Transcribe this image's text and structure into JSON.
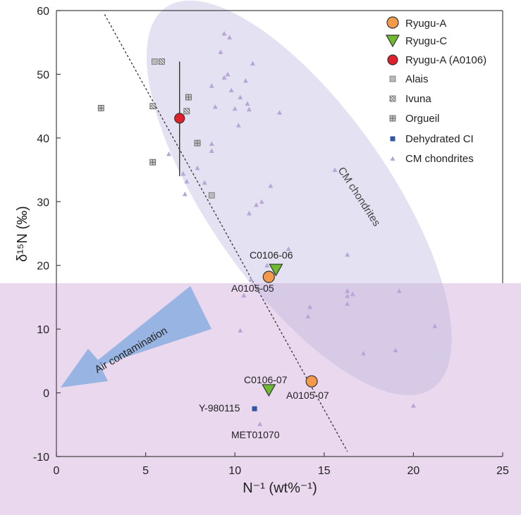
{
  "chart_data": {
    "type": "scatter",
    "xlabel": "N⁻¹ (wt%⁻¹)",
    "ylabel": "δ¹⁵N (‰)",
    "xlim": [
      0,
      25
    ],
    "ylim": [
      -10,
      60
    ],
    "xticks": [
      0,
      5,
      10,
      15,
      20,
      25
    ],
    "yticks": [
      -10,
      0,
      10,
      20,
      30,
      40,
      50,
      60
    ],
    "grid": false,
    "legend_position": "top-right",
    "colors": {
      "ryugu_a": "#f39a4a",
      "ryugu_c": "#6dbb2e",
      "ryugu_a0106": "#e0202a",
      "alais": "#b9b9b9",
      "ivuna": "#c4c4c4",
      "orgueil": "#c4c4c4",
      "dehydrated": "#2f55a8",
      "cm": "#b7a6d6",
      "cm_region": "#b9b3dc",
      "lower_band": "#ead8ee",
      "arrow": "#8fb0e0"
    },
    "series": [
      {
        "name": "Ryugu-A",
        "marker": "circle",
        "points": [
          [
            11.9,
            18.2
          ],
          [
            14.3,
            1.8
          ]
        ]
      },
      {
        "name": "Ryugu-C",
        "marker": "triangle-down",
        "points": [
          [
            12.3,
            19.3
          ],
          [
            11.9,
            0.4
          ]
        ]
      },
      {
        "name": "Ryugu-A (A0106)",
        "marker": "circle",
        "points": [
          [
            6.9,
            43.1
          ]
        ],
        "error_y": [
          [
            34.0,
            52.0
          ]
        ]
      },
      {
        "name": "Alais",
        "marker": "square",
        "points": [
          [
            5.5,
            52.0
          ],
          [
            8.7,
            31.0
          ]
        ]
      },
      {
        "name": "Ivuna",
        "marker": "square-hatch",
        "points": [
          [
            5.9,
            52.0
          ],
          [
            5.4,
            45.0
          ],
          [
            7.3,
            44.2
          ]
        ]
      },
      {
        "name": "Orgueil",
        "marker": "square-cross",
        "points": [
          [
            2.5,
            44.7
          ],
          [
            5.4,
            36.2
          ],
          [
            7.4,
            46.4
          ],
          [
            7.9,
            39.2
          ]
        ]
      },
      {
        "name": "Dehydrated CI",
        "marker": "small-square",
        "points": [
          [
            11.1,
            -2.5
          ]
        ]
      },
      {
        "name": "CM chondrites",
        "marker": "triangle-up",
        "points": [
          [
            9.4,
            56.4
          ],
          [
            9.7,
            55.8
          ],
          [
            9.2,
            53.5
          ],
          [
            11.0,
            51.7
          ],
          [
            8.7,
            48.2
          ],
          [
            9.4,
            49.5
          ],
          [
            9.6,
            50.0
          ],
          [
            10.6,
            49.0
          ],
          [
            9.8,
            47.5
          ],
          [
            10.3,
            46.4
          ],
          [
            10.7,
            45.4
          ],
          [
            10.8,
            44.5
          ],
          [
            8.9,
            44.9
          ],
          [
            10.0,
            44.6
          ],
          [
            12.5,
            44.0
          ],
          [
            10.2,
            42.0
          ],
          [
            8.7,
            39.1
          ],
          [
            8.7,
            38.0
          ],
          [
            6.3,
            37.5
          ],
          [
            7.9,
            35.3
          ],
          [
            7.1,
            34.4
          ],
          [
            7.3,
            33.2
          ],
          [
            7.2,
            31.2
          ],
          [
            8.3,
            33.0
          ],
          [
            11.5,
            30.0
          ],
          [
            11.2,
            29.5
          ],
          [
            10.8,
            28.2
          ],
          [
            12.0,
            32.5
          ],
          [
            15.6,
            35.0
          ],
          [
            13.0,
            22.6
          ],
          [
            16.3,
            21.7
          ],
          [
            11.8,
            20.0
          ],
          [
            10.9,
            17.8
          ],
          [
            10.5,
            15.3
          ],
          [
            16.3,
            16.0
          ],
          [
            16.3,
            15.2
          ],
          [
            16.6,
            15.5
          ],
          [
            19.2,
            16.0
          ],
          [
            16.3,
            14.0
          ],
          [
            14.2,
            13.5
          ],
          [
            14.1,
            12.0
          ],
          [
            17.2,
            6.2
          ],
          [
            19.0,
            6.7
          ],
          [
            21.2,
            10.5
          ],
          [
            20.0,
            -2.0
          ],
          [
            10.3,
            9.8
          ],
          [
            11.4,
            -4.9
          ]
        ]
      }
    ],
    "annotations": {
      "c0106_06": "C0106-06",
      "a0105_05": "A0105-05",
      "c0106_07": "C0106-07",
      "a0105_07": "A0105-07",
      "y980115": "Y-980115",
      "met01070": "MET01070",
      "cm_region": "CM chondrites",
      "air": "Air contamination"
    }
  }
}
